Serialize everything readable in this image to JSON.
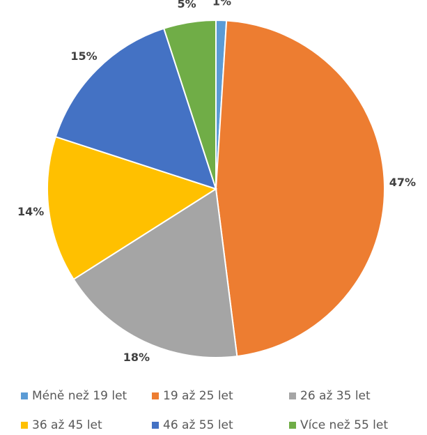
{
  "chart_data": {
    "type": "pie",
    "categories": [
      "Méně než 19 let",
      "19 až 25 let",
      "26 až 35 let",
      "36 až 45 let",
      "46 až 55 let",
      "Více než 55 let"
    ],
    "values": [
      1,
      47,
      18,
      14,
      15,
      5
    ],
    "value_labels": [
      "1%",
      "47%",
      "18%",
      "14%",
      "15%",
      "5%"
    ],
    "colors": [
      "#5b9bd5",
      "#ed7d31",
      "#a5a5a5",
      "#ffc000",
      "#4472c4",
      "#70ad47"
    ],
    "legend": "bottom"
  }
}
